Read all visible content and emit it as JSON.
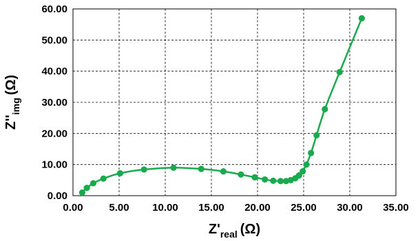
{
  "chart_data": {
    "type": "scatter",
    "title": "",
    "xlabel": {
      "main": "Z'",
      "sub": "real",
      "unit": "(Ω)"
    },
    "ylabel": {
      "main": "Z''",
      "sub": "img",
      "unit": "(Ω)"
    },
    "xlim": [
      0,
      35
    ],
    "ylim": [
      0,
      60
    ],
    "x_ticks": [
      "0.00",
      "5.00",
      "10.00",
      "15.00",
      "20.00",
      "25.00",
      "30.00",
      "35.00"
    ],
    "y_ticks": [
      "0.00",
      "10.00",
      "20.00",
      "30.00",
      "40.00",
      "50.00",
      "60.00"
    ],
    "grid": true,
    "legend": "none",
    "series": [
      {
        "color": "#1aaa4e",
        "marker": "circle",
        "line": "smooth",
        "points": [
          [
            1.0,
            1.0
          ],
          [
            1.5,
            2.5
          ],
          [
            2.2,
            4.0
          ],
          [
            3.3,
            5.5
          ],
          [
            5.1,
            7.2
          ],
          [
            7.7,
            8.4
          ],
          [
            10.9,
            9.0
          ],
          [
            13.9,
            8.6
          ],
          [
            16.3,
            7.8
          ],
          [
            18.2,
            6.8
          ],
          [
            19.7,
            5.9
          ],
          [
            20.8,
            5.2
          ],
          [
            21.7,
            4.8
          ],
          [
            22.5,
            4.7
          ],
          [
            23.1,
            4.7
          ],
          [
            23.6,
            5.0
          ],
          [
            24.1,
            5.6
          ],
          [
            24.5,
            6.5
          ],
          [
            24.9,
            7.8
          ],
          [
            25.3,
            10.0
          ],
          [
            25.8,
            13.7
          ],
          [
            26.4,
            19.4
          ],
          [
            27.3,
            27.8
          ],
          [
            28.9,
            39.7
          ],
          [
            31.3,
            57.0
          ]
        ]
      }
    ]
  }
}
